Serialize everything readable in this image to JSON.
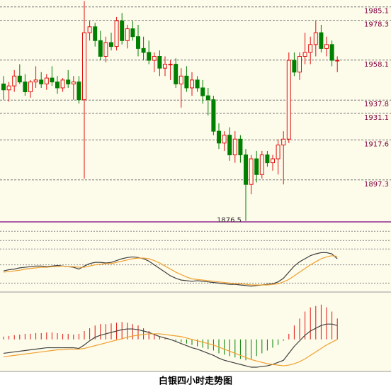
{
  "caption": "白银四小时走势图",
  "chart_data": [
    {
      "type": "candlestick",
      "open": [
        1946,
        1943,
        1945,
        1950,
        1947,
        1942,
        1947,
        1948,
        1946,
        1949,
        1947,
        1944,
        1948,
        1946,
        1947,
        1938,
        1972,
        1975,
        1968,
        1960,
        1967,
        1965,
        1978,
        1968,
        1974,
        1970,
        1964,
        1962,
        1958,
        1960,
        1954,
        1956,
        1956,
        1946,
        1950,
        1944,
        1948,
        1944,
        1940,
        1938,
        1922,
        1916,
        1920,
        1910,
        1918,
        1910,
        1895,
        1908,
        1900,
        1910,
        1906,
        1908,
        1915,
        1918,
        1958,
        1952,
        1960,
        1962,
        1966,
        1972,
        1964,
        1966,
        1958
      ],
      "high": [
        1950,
        1947,
        1953,
        1956,
        1951,
        1948,
        1955,
        1952,
        1951,
        1955,
        1950,
        1949,
        1953,
        1950,
        1950,
        1988,
        1978,
        1977,
        1973,
        1970,
        1972,
        1980,
        1982,
        1976,
        1978,
        1976,
        1970,
        1968,
        1962,
        1963,
        1960,
        1958,
        1959,
        1954,
        1955,
        1952,
        1950,
        1948,
        1944,
        1940,
        1926,
        1922,
        1924,
        1922,
        1920,
        1913,
        1910,
        1912,
        1912,
        1912,
        1910,
        1918,
        1922,
        1962,
        1962,
        1962,
        1972,
        1970,
        1978,
        1976,
        1970,
        1968,
        1960
      ],
      "low": [
        1938,
        1937,
        1942,
        1946,
        1940,
        1939,
        1944,
        1944,
        1943,
        1945,
        1941,
        1942,
        1944,
        1938,
        1936,
        1898,
        1968,
        1965,
        1958,
        1957,
        1963,
        1963,
        1966,
        1964,
        1968,
        1960,
        1958,
        1956,
        1952,
        1950,
        1950,
        1948,
        1944,
        1934,
        1942,
        1940,
        1942,
        1936,
        1930,
        1920,
        1913,
        1912,
        1907,
        1906,
        1906,
        1876.5,
        1890,
        1896,
        1898,
        1904,
        1902,
        1900,
        1895,
        1916,
        1950,
        1948,
        1956,
        1956,
        1960,
        1962,
        1960,
        1955,
        1952
      ],
      "close": [
        1943,
        1945,
        1950,
        1947,
        1942,
        1947,
        1948,
        1946,
        1949,
        1947,
        1944,
        1948,
        1946,
        1947,
        1938,
        1972,
        1975,
        1968,
        1960,
        1967,
        1965,
        1978,
        1968,
        1974,
        1970,
        1964,
        1962,
        1958,
        1960,
        1954,
        1956,
        1956,
        1946,
        1950,
        1944,
        1948,
        1944,
        1940,
        1938,
        1922,
        1916,
        1920,
        1910,
        1918,
        1910,
        1895,
        1908,
        1900,
        1910,
        1906,
        1908,
        1915,
        1918,
        1958,
        1952,
        1960,
        1962,
        1966,
        1972,
        1964,
        1966,
        1958,
        1958
      ],
      "ylim": [
        1876,
        1988.6
      ],
      "price_lines": [
        1985.1,
        1978.3,
        1958.1,
        1937.8,
        1931.1,
        1917.6,
        1897.3
      ],
      "up_color": "#e01010",
      "down_color": "#008000"
    },
    {
      "type": "line",
      "series": [
        {
          "color": "#404040",
          "values": [
            30,
            32,
            33,
            35,
            36,
            37,
            38,
            38,
            37,
            38,
            39,
            38,
            37,
            36,
            33,
            38,
            42,
            44,
            44,
            43,
            44,
            47,
            50,
            52,
            53,
            52,
            50,
            46,
            40,
            34,
            28,
            22,
            18,
            15,
            14,
            13,
            14,
            13,
            12,
            11,
            10,
            9,
            8,
            8,
            7,
            6,
            5,
            6,
            7,
            8,
            9,
            12,
            18,
            28,
            38,
            45,
            50,
            55,
            58,
            60,
            60,
            58,
            50
          ]
        },
        {
          "color": "#f0a030",
          "values": [
            28,
            29,
            30,
            31,
            33,
            34,
            35,
            36,
            36,
            37,
            37,
            38,
            37,
            37,
            36,
            36,
            38,
            40,
            41,
            42,
            42,
            44,
            46,
            48,
            50,
            51,
            51,
            50,
            47,
            43,
            38,
            33,
            28,
            24,
            20,
            17,
            16,
            15,
            14,
            13,
            12,
            11,
            10,
            9,
            9,
            8,
            7,
            7,
            7,
            7,
            8,
            9,
            12,
            16,
            22,
            28,
            34,
            40,
            45,
            50,
            53,
            55,
            54
          ]
        }
      ],
      "ylim": [
        0,
        100
      ],
      "yticks": [
        95,
        80,
        66,
        40,
        10
      ],
      "grid": true
    },
    {
      "type": "macd",
      "histogram": {
        "up_color": "#e01010",
        "down_color": "#008000",
        "values": [
          4,
          5,
          6,
          7,
          8,
          8,
          9,
          9,
          10,
          10,
          9,
          8,
          8,
          7,
          8,
          12,
          16,
          20,
          22,
          22,
          23,
          24,
          25,
          24,
          22,
          20,
          16,
          12,
          8,
          4,
          2,
          0,
          -2,
          -4,
          -6,
          -8,
          -10,
          -12,
          -14,
          -16,
          -20,
          -22,
          -24,
          -26,
          -28,
          -30,
          -28,
          -24,
          -20,
          -16,
          -12,
          -8,
          -2,
          8,
          20,
          30,
          40,
          46,
          48,
          50,
          46,
          40,
          30
        ]
      },
      "series": [
        {
          "color": "#404040",
          "values": [
            -20,
            -19,
            -18,
            -17,
            -16,
            -15,
            -14,
            -13,
            -12,
            -12,
            -12,
            -12,
            -12,
            -12,
            -13,
            -8,
            -2,
            3,
            6,
            8,
            10,
            12,
            14,
            15,
            15,
            14,
            12,
            10,
            7,
            4,
            2,
            0,
            -3,
            -6,
            -9,
            -12,
            -14,
            -17,
            -20,
            -23,
            -27,
            -30,
            -32,
            -34,
            -36,
            -38,
            -40,
            -40,
            -39,
            -38,
            -36,
            -33,
            -30,
            -20,
            -10,
            -2,
            6,
            12,
            16,
            20,
            22,
            22,
            20
          ]
        },
        {
          "color": "#f0a030",
          "values": [
            -25,
            -24,
            -23,
            -22,
            -21,
            -20,
            -19,
            -18,
            -17,
            -16,
            -15,
            -15,
            -14,
            -14,
            -14,
            -13,
            -11,
            -9,
            -7,
            -5,
            -3,
            -1,
            1,
            3,
            5,
            6,
            7,
            8,
            8,
            8,
            7,
            6,
            5,
            4,
            2,
            0,
            -2,
            -4,
            -6,
            -8,
            -11,
            -14,
            -17,
            -20,
            -23,
            -26,
            -29,
            -31,
            -33,
            -35,
            -36,
            -37,
            -38,
            -37,
            -35,
            -32,
            -28,
            -23,
            -18,
            -13,
            -8,
            -4,
            0
          ]
        }
      ],
      "ylim": [
        -42,
        65
      ]
    }
  ]
}
